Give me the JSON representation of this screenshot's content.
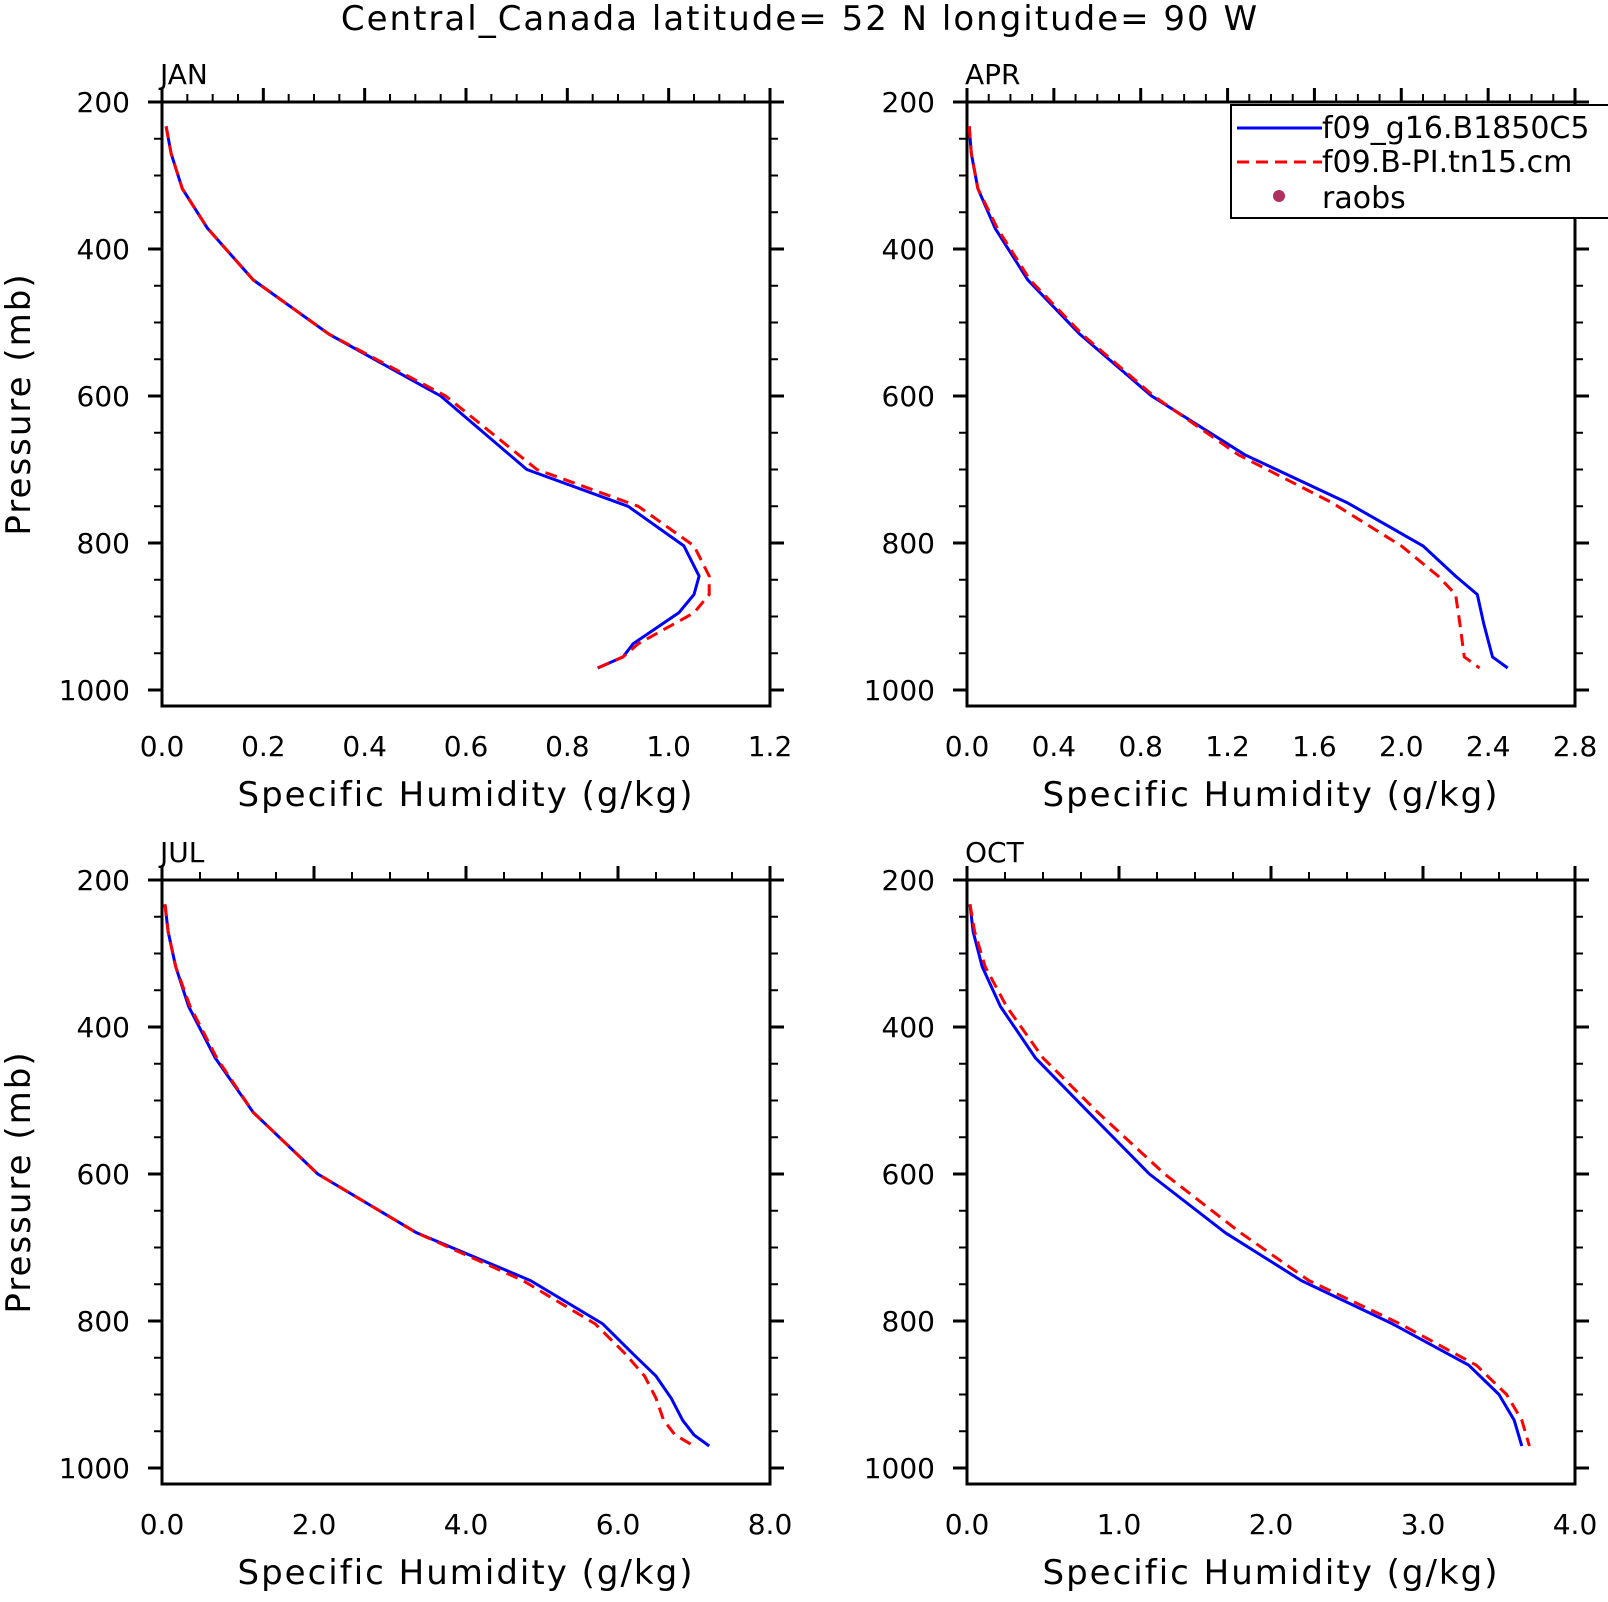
{
  "title": "Central_Canada  latitude= 52 N longitude= 90 W",
  "colors": {
    "series1": "#0000ff",
    "series2": "#ff0000",
    "raobs": "#b03060",
    "axes": "#000000"
  },
  "legend": {
    "placement": "top-right of APR panel (clipped at right edge)",
    "items": [
      {
        "label": "f09_g16.B1850C5",
        "style": "solid",
        "color": "#0000ff"
      },
      {
        "label": "f09.B-PI.tn15.cm",
        "style": "dashed",
        "color": "#ff0000"
      },
      {
        "label": "raobs",
        "style": "marker",
        "color": "#b03060"
      }
    ]
  },
  "chart_data": [
    {
      "type": "line",
      "title": "JAN",
      "xlabel": "Specific Humidity (g/kg)",
      "ylabel": "Pressure (mb)",
      "xlim": [
        0,
        1.2
      ],
      "ylim": [
        1000,
        200
      ],
      "y_inverted": true,
      "xticks": [
        "0.0",
        "0.2",
        "0.4",
        "0.6",
        "0.8",
        "1.0",
        "1.2"
      ],
      "yticks": [
        "200",
        "400",
        "600",
        "800",
        "1000"
      ],
      "grid": false,
      "series": [
        {
          "name": "f09_g16.B1850C5",
          "style": "solid",
          "color": "#0000ff",
          "x": [
            0.008,
            0.018,
            0.04,
            0.09,
            0.18,
            0.33,
            0.55,
            0.72,
            0.92,
            1.03,
            1.06,
            1.05,
            1.02,
            0.93,
            0.91,
            0.86
          ],
          "y": [
            233,
            270,
            318,
            372,
            442,
            516,
            600,
            700,
            750,
            804,
            845,
            870,
            895,
            937,
            955,
            970
          ]
        },
        {
          "name": "f09.B-PI.tn15.cm",
          "style": "dashed",
          "color": "#ff0000",
          "x": [
            0.008,
            0.018,
            0.04,
            0.09,
            0.18,
            0.33,
            0.56,
            0.74,
            0.94,
            1.05,
            1.08,
            1.08,
            1.05,
            0.94,
            0.91,
            0.86
          ],
          "y": [
            233,
            270,
            318,
            372,
            442,
            516,
            600,
            700,
            750,
            804,
            845,
            870,
            895,
            937,
            955,
            970
          ]
        }
      ]
    },
    {
      "type": "line",
      "title": "APR",
      "xlabel": "Specific Humidity (g/kg)",
      "ylabel": "",
      "xlim": [
        0,
        2.8
      ],
      "ylim": [
        1000,
        200
      ],
      "y_inverted": true,
      "xticks": [
        "0.0",
        "0.4",
        "0.8",
        "1.2",
        "1.6",
        "2.0",
        "2.4",
        "2.8"
      ],
      "yticks": [
        "200",
        "400",
        "600",
        "800",
        "1000"
      ],
      "grid": false,
      "series": [
        {
          "name": "f09_g16.B1850C5",
          "style": "solid",
          "color": "#0000ff",
          "x": [
            0.01,
            0.02,
            0.05,
            0.13,
            0.28,
            0.52,
            0.85,
            1.28,
            1.75,
            2.1,
            2.25,
            2.35,
            2.38,
            2.42,
            2.49
          ],
          "y": [
            233,
            270,
            318,
            372,
            442,
            516,
            600,
            680,
            745,
            804,
            845,
            870,
            910,
            955,
            970
          ]
        },
        {
          "name": "f09.B-PI.tn15.cm",
          "style": "dashed",
          "color": "#ff0000",
          "x": [
            0.01,
            0.02,
            0.05,
            0.14,
            0.29,
            0.53,
            0.86,
            1.25,
            1.68,
            2.0,
            2.17,
            2.25,
            2.27,
            2.29,
            2.36
          ],
          "y": [
            233,
            270,
            318,
            372,
            442,
            516,
            600,
            680,
            745,
            804,
            845,
            870,
            910,
            955,
            970
          ]
        }
      ]
    },
    {
      "type": "line",
      "title": "JUL",
      "xlabel": "Specific Humidity (g/kg)",
      "ylabel": "Pressure (mb)",
      "xlim": [
        0,
        8
      ],
      "ylim": [
        1000,
        200
      ],
      "y_inverted": true,
      "xticks": [
        "0.0",
        "2.0",
        "4.0",
        "6.0",
        "8.0"
      ],
      "yticks": [
        "200",
        "400",
        "600",
        "800",
        "1000"
      ],
      "grid": false,
      "series": [
        {
          "name": "f09_g16.B1850C5",
          "style": "solid",
          "color": "#0000ff",
          "x": [
            0.04,
            0.08,
            0.18,
            0.35,
            0.7,
            1.2,
            2.05,
            3.35,
            4.85,
            5.8,
            6.2,
            6.5,
            6.7,
            6.85,
            7.0,
            7.2
          ],
          "y": [
            233,
            270,
            318,
            372,
            442,
            516,
            600,
            680,
            745,
            804,
            845,
            875,
            905,
            935,
            955,
            970
          ]
        },
        {
          "name": "f09.B-PI.tn15.cm",
          "style": "dashed",
          "color": "#ff0000",
          "x": [
            0.04,
            0.08,
            0.18,
            0.37,
            0.72,
            1.2,
            2.05,
            3.35,
            4.75,
            5.7,
            6.1,
            6.35,
            6.5,
            6.6,
            6.75,
            7.0
          ],
          "y": [
            233,
            270,
            318,
            372,
            442,
            516,
            600,
            680,
            745,
            804,
            845,
            875,
            905,
            935,
            955,
            970
          ]
        }
      ]
    },
    {
      "type": "line",
      "title": "OCT",
      "xlabel": "Specific Humidity (g/kg)",
      "ylabel": "",
      "xlim": [
        0,
        4
      ],
      "ylim": [
        1000,
        200
      ],
      "y_inverted": true,
      "xticks": [
        "0.0",
        "1.0",
        "2.0",
        "3.0",
        "4.0"
      ],
      "yticks": [
        "200",
        "400",
        "600",
        "800",
        "1000"
      ],
      "grid": false,
      "series": [
        {
          "name": "f09_g16.B1850C5",
          "style": "solid",
          "color": "#0000ff",
          "x": [
            0.02,
            0.04,
            0.1,
            0.22,
            0.45,
            0.8,
            1.2,
            1.7,
            2.2,
            2.8,
            3.3,
            3.5,
            3.6,
            3.65
          ],
          "y": [
            233,
            270,
            318,
            372,
            442,
            516,
            600,
            680,
            745,
            804,
            860,
            900,
            935,
            970
          ]
        },
        {
          "name": "f09.B-PI.tn15.cm",
          "style": "dashed",
          "color": "#ff0000",
          "x": [
            0.02,
            0.05,
            0.12,
            0.26,
            0.5,
            0.86,
            1.3,
            1.8,
            2.25,
            2.85,
            3.35,
            3.55,
            3.65,
            3.7
          ],
          "y": [
            233,
            270,
            318,
            372,
            442,
            516,
            600,
            680,
            745,
            804,
            860,
            900,
            935,
            970
          ]
        }
      ]
    }
  ]
}
